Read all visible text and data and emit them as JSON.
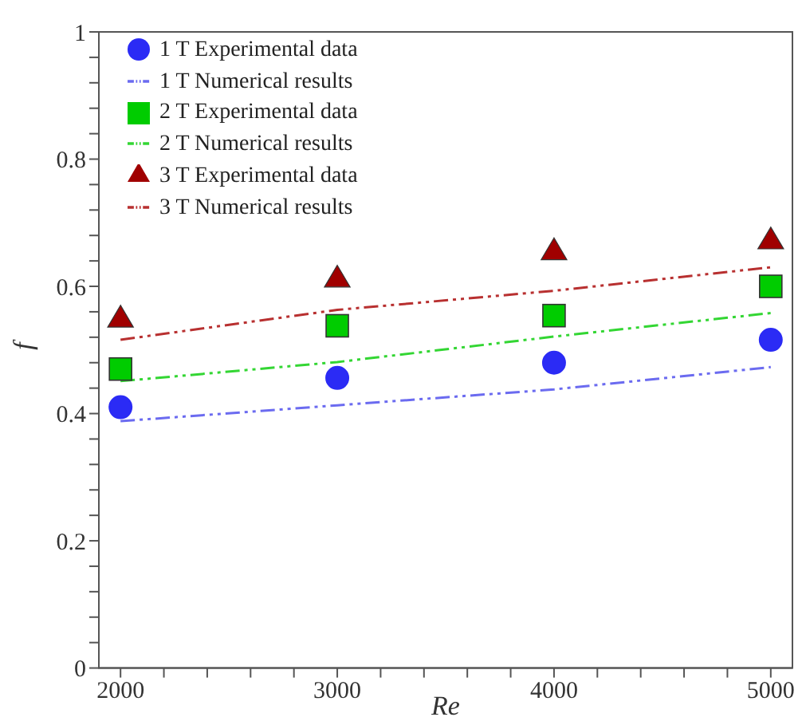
{
  "chart_data": {
    "type": "line",
    "xlabel": "Re",
    "ylabel": "f",
    "x": [
      2000,
      3000,
      4000,
      5000
    ],
    "xlim": [
      1900,
      5100
    ],
    "ylim": [
      0,
      1
    ],
    "xticks": [
      2000,
      {
        "value": 2200,
        "label": null
      },
      {
        "value": 2400,
        "label": null
      },
      {
        "value": 2600,
        "label": null
      },
      {
        "value": 2800,
        "label": null
      },
      3000,
      {
        "value": 3200,
        "label": null
      },
      {
        "value": 3400,
        "label": null
      },
      {
        "value": 3600,
        "label": null
      },
      {
        "value": 3800,
        "label": null
      },
      4000,
      {
        "value": 4200,
        "label": null
      },
      {
        "value": 4400,
        "label": null
      },
      {
        "value": 4600,
        "label": null
      },
      {
        "value": 4800,
        "label": null
      },
      5000
    ],
    "yticks": [
      0,
      {
        "value": 0.04,
        "label": null
      },
      {
        "value": 0.08,
        "label": null
      },
      {
        "value": 0.12,
        "label": null
      },
      {
        "value": 0.16,
        "label": null
      },
      0.2,
      {
        "value": 0.24,
        "label": null
      },
      {
        "value": 0.28,
        "label": null
      },
      {
        "value": 0.32,
        "label": null
      },
      {
        "value": 0.36,
        "label": null
      },
      0.4,
      {
        "value": 0.44,
        "label": null
      },
      {
        "value": 0.48,
        "label": null
      },
      {
        "value": 0.52,
        "label": null
      },
      {
        "value": 0.56,
        "label": null
      },
      0.6,
      {
        "value": 0.64,
        "label": null
      },
      {
        "value": 0.68,
        "label": null
      },
      {
        "value": 0.72,
        "label": null
      },
      {
        "value": 0.76,
        "label": null
      },
      0.8,
      {
        "value": 0.84,
        "label": null
      },
      {
        "value": 0.88,
        "label": null
      },
      {
        "value": 0.92,
        "label": null
      },
      {
        "value": 0.96,
        "label": null
      },
      1
    ],
    "legend": "top left",
    "grid": false,
    "series": [
      {
        "name": "1 T Experimental data",
        "type": "scatter",
        "marker": "circle",
        "color": "#2b2bf5",
        "values": [
          0.41,
          0.456,
          0.48,
          0.516
        ]
      },
      {
        "name": "1 T Numerical results",
        "line_style": "dashed",
        "marker": "none",
        "color": "#6b6bf0",
        "values": [
          0.388,
          0.413,
          0.438,
          0.473
        ]
      },
      {
        "name": "2 T Experimental data",
        "type": "scatter",
        "marker": "square",
        "color": "#00cc00",
        "values": [
          0.47,
          0.538,
          0.554,
          0.6
        ]
      },
      {
        "name": "2 T Numerical results",
        "line_style": "dashed",
        "marker": "none",
        "color": "#33d633",
        "values": [
          0.451,
          0.481,
          0.521,
          0.558
        ]
      },
      {
        "name": "3 T Experimental data",
        "type": "scatter",
        "marker": "triangle",
        "color": "#a00000",
        "values": [
          0.55,
          0.613,
          0.656,
          0.673
        ]
      },
      {
        "name": "3 T Numerical results",
        "line_style": "dashed",
        "marker": "none",
        "color": "#b83030",
        "values": [
          0.516,
          0.563,
          0.593,
          0.63
        ]
      }
    ]
  }
}
